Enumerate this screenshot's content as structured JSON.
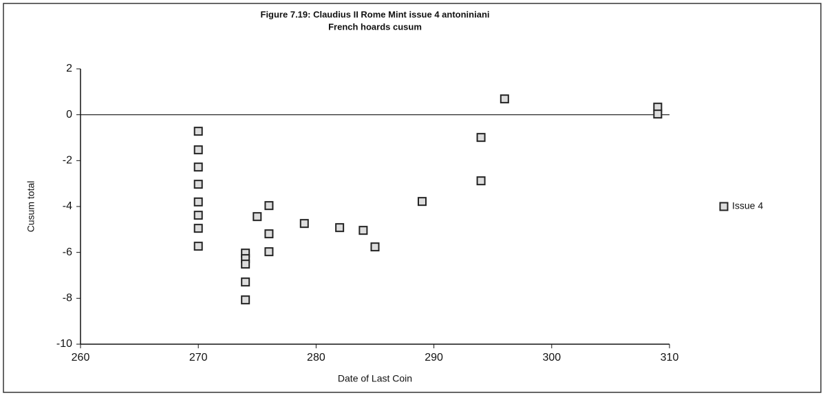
{
  "chart_data": {
    "type": "scatter",
    "title": "Figure 7.19: Claudius II Rome Mint issue 4 antoniniani",
    "subtitle": "French hoards cusum",
    "x_label": "Date of Last Coin",
    "y_label": "Cusum total",
    "series": [
      {
        "name": "Issue 4",
        "color": "#222222",
        "x": [
          270,
          270,
          270,
          270,
          270,
          270,
          270,
          270,
          274,
          274,
          274,
          274,
          274,
          275,
          276,
          276,
          276,
          279,
          282,
          284,
          285,
          289,
          294,
          294,
          296,
          309,
          309
        ],
        "values": [
          -0.72,
          -1.53,
          -2.28,
          -3.03,
          -3.8,
          -4.38,
          -4.95,
          -5.73,
          -6.03,
          -6.27,
          -6.51,
          -7.29,
          -8.07,
          -4.44,
          -3.96,
          -5.19,
          -5.97,
          -4.74,
          -4.92,
          -5.04,
          -5.76,
          -3.78,
          -0.99,
          -2.88,
          0.69,
          0.33,
          0.03
        ]
      }
    ],
    "xlim": [
      260,
      310
    ],
    "xticks": [
      260,
      270,
      280,
      290,
      300,
      310
    ],
    "ylim": [
      -10,
      2
    ],
    "yticks": [
      -10,
      -8,
      -6,
      -4,
      -2,
      0,
      2
    ],
    "legend": "right"
  }
}
